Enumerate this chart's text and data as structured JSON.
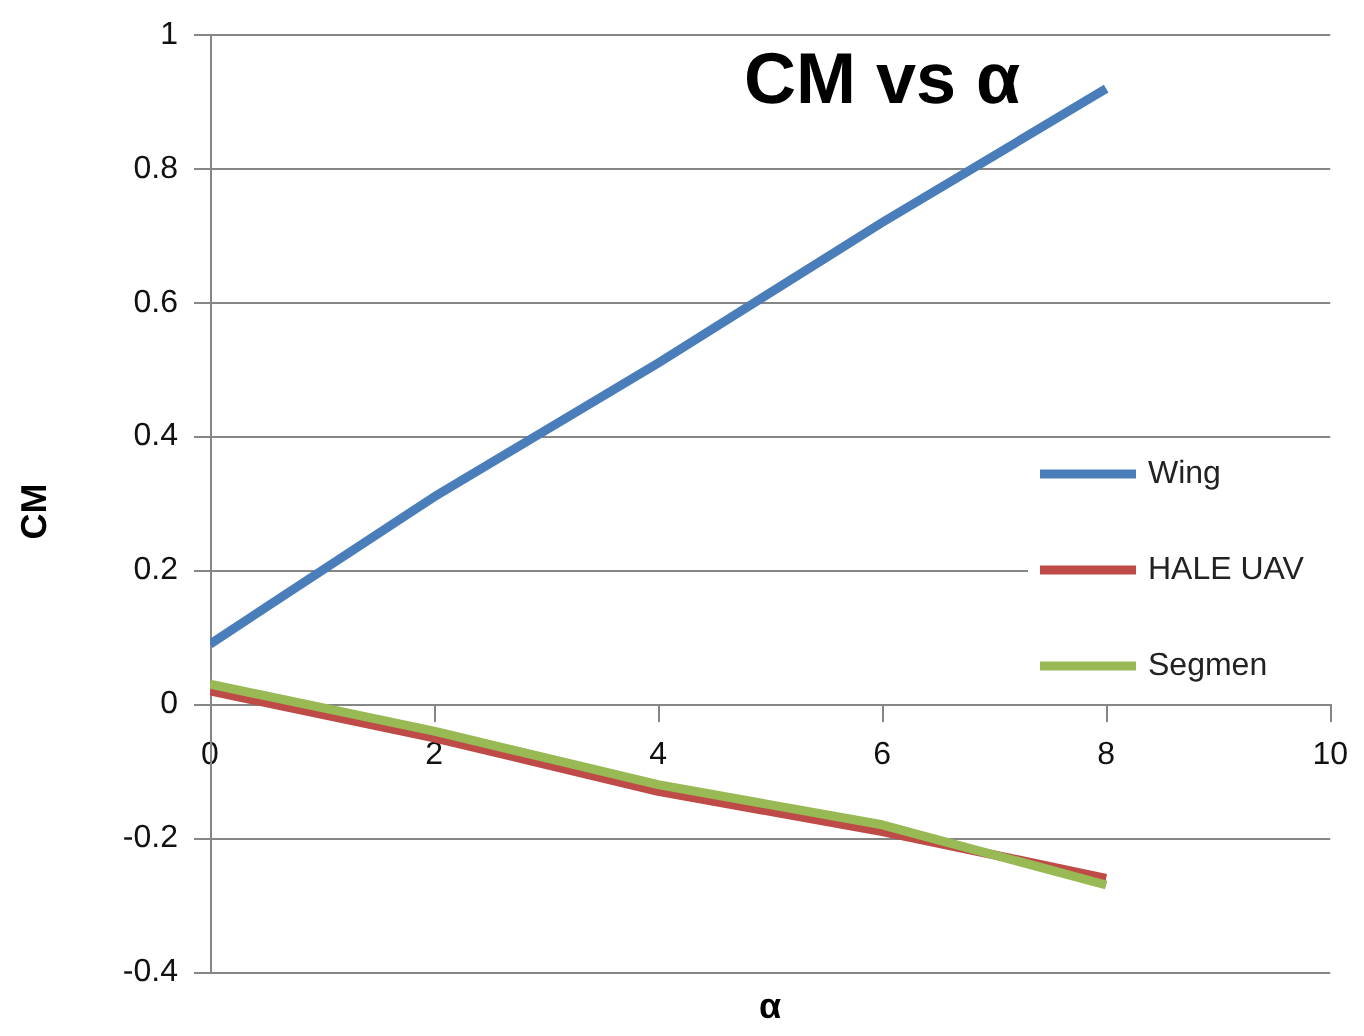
{
  "chart_data": {
    "type": "line",
    "title": "CM vs α",
    "xlabel": "α",
    "ylabel": "CM",
    "x": [
      0,
      2,
      4,
      6,
      8
    ],
    "series": [
      {
        "name": "Wing",
        "color": "#4a7ebb",
        "values": [
          0.09,
          0.31,
          0.51,
          0.72,
          0.92
        ]
      },
      {
        "name": "HALE UAV",
        "color": "#be4b48",
        "values": [
          0.02,
          -0.05,
          -0.13,
          -0.19,
          -0.26
        ]
      },
      {
        "name": "Segmen",
        "color": "#98b954",
        "values": [
          0.03,
          -0.04,
          -0.12,
          -0.18,
          -0.27
        ]
      }
    ],
    "xlim": [
      0,
      10
    ],
    "xticks": [
      0,
      2,
      4,
      6,
      8,
      10
    ],
    "ylim": [
      -0.4,
      1
    ],
    "yticks": [
      -0.4,
      -0.2,
      0,
      0.2,
      0.4,
      0.6,
      0.8,
      1
    ],
    "grid": "y",
    "legend": "right",
    "marker": "none",
    "line_style": "solid"
  }
}
